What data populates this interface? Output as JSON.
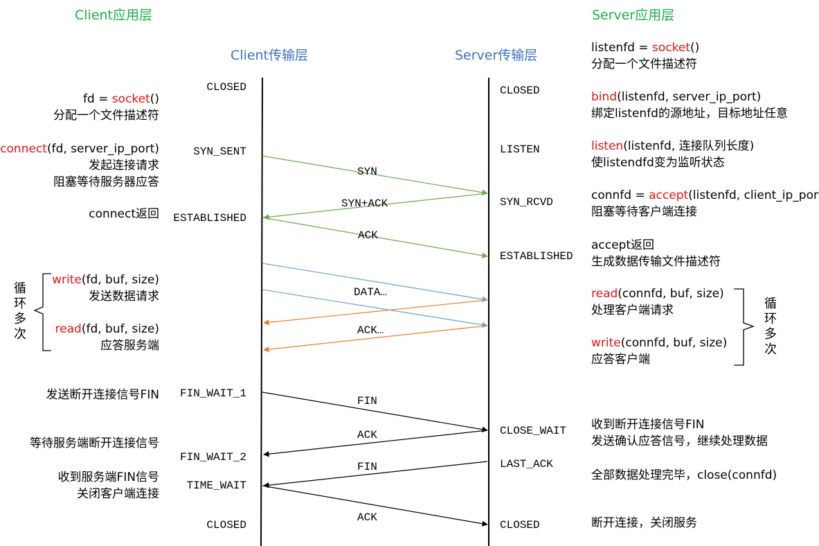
{
  "headers": {
    "client_app": "Client应用层",
    "server_app": "Server应用层",
    "client_transport": "Client传输层",
    "server_transport": "Server传输层"
  },
  "client_states": [
    "CLOSED",
    "SYN_SENT",
    "ESTABLISHED",
    "FIN_WAIT_1",
    "FIN_WAIT_2",
    "TIME_WAIT",
    "CLOSED"
  ],
  "server_states": [
    "CLOSED",
    "LISTEN",
    "SYN_RCVD",
    "ESTABLISHED",
    "CLOSE_WAIT",
    "LAST_ACK",
    "CLOSED"
  ],
  "client_notes": {
    "socket": {
      "pre": "fd = ",
      "fn": "socket",
      "post": "()"
    },
    "socket_desc": "分配一个文件描述符",
    "connect": {
      "fn": "connect",
      "post": "(fd, server_ip_port)"
    },
    "connect_desc1": "发起连接请求",
    "connect_desc2": "阻塞等待服务器应答",
    "connect_return": "connect返回",
    "write": {
      "fn": "write",
      "post": "(fd, buf, size)"
    },
    "write_desc": "发送数据请求",
    "read": {
      "fn": "read",
      "post": "(fd, buf, size)"
    },
    "read_desc": "应答服务端",
    "send_fin": "发送断开连接信号FIN",
    "wait_server": "等待服务端断开连接信号",
    "recv_fin": "收到服务端FIN信号",
    "close_conn": "关闭客户端连接",
    "loop_label": "循环多次"
  },
  "server_notes": {
    "socket": {
      "pre": "listenfd = ",
      "fn": "socket",
      "post": "()"
    },
    "socket_desc": "分配一个文件描述符",
    "bind": {
      "fn": "bind",
      "post": "(listenfd, server_ip_port)"
    },
    "bind_desc": "绑定listenfd的源地址，目标地址任意",
    "listen": {
      "fn": "listen",
      "post": "(listenfd, 连接队列长度)"
    },
    "listen_desc": "使listendfd变为监听状态",
    "accept": {
      "pre": "connfd = ",
      "fn": "accept",
      "post": "(listenfd, client_ip_port)"
    },
    "accept_desc": "阻塞等待客户端连接",
    "accept_return": "accept返回",
    "accept_return_desc": "生成数据传输文件描述符",
    "read": {
      "fn": "read",
      "post": "(connfd, buf, size)"
    },
    "read_desc": "处理客户端请求",
    "write": {
      "fn": "write",
      "post": "(connfd, buf, size)"
    },
    "write_desc": "应答客户端",
    "recv_fin": "收到断开连接信号FIN",
    "send_ack": "发送确认应答信号，继续处理数据",
    "done": "全部数据处理完毕，close(connfd)",
    "close_service": "断开连接，关闭服务",
    "loop_label": "循环多次"
  },
  "messages": [
    "SYN",
    "SYN+ACK",
    "ACK",
    "DATA…",
    "ACK…",
    "FIN",
    "ACK",
    "FIN",
    "ACK"
  ],
  "colors": {
    "header_green": "#1aae4a",
    "header_blue": "#3c72c4",
    "function_red": "#ee1111",
    "handshake_arrow": "#6aa84f",
    "data_arrow": "#6d9ed4",
    "ack_data_arrow": "#f07a30",
    "teardown_arrow": "#000000"
  }
}
